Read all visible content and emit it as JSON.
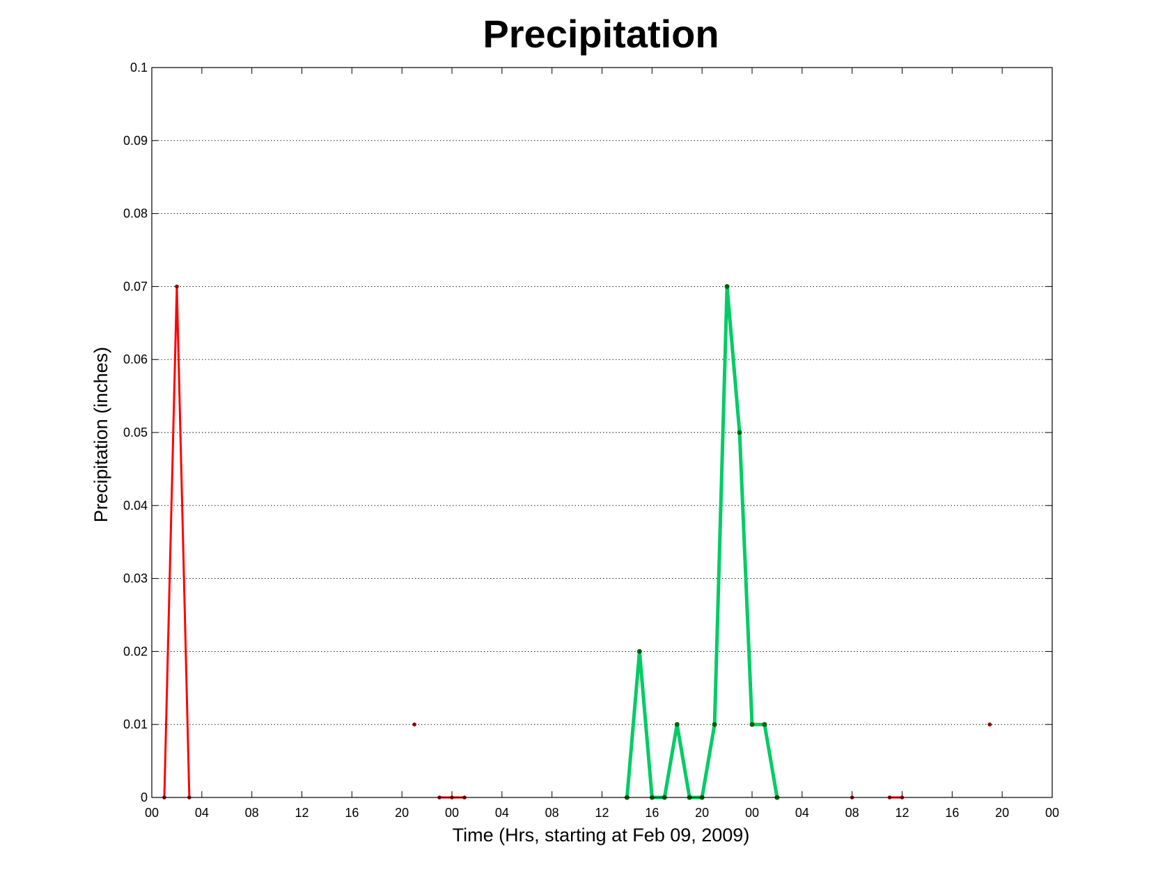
{
  "chart_data": {
    "type": "line",
    "title": "Precipitation",
    "xlabel": "Time (Hrs, starting at Feb 09, 2009)",
    "ylabel": "Precipitation (inches)",
    "x_unit": "hours",
    "xlim": [
      0,
      72
    ],
    "ylim": [
      0,
      0.1
    ],
    "x_tick_labels": [
      "00",
      "04",
      "08",
      "12",
      "16",
      "20",
      "00",
      "04",
      "08",
      "12",
      "16",
      "20",
      "00",
      "04",
      "08",
      "12",
      "16",
      "20",
      "00"
    ],
    "y_tick_labels": [
      "0",
      "0.01",
      "0.02",
      "0.03",
      "0.04",
      "0.05",
      "0.06",
      "0.07",
      "0.08",
      "0.09",
      "0.1"
    ],
    "y_ticks": [
      0,
      0.01,
      0.02,
      0.03,
      0.04,
      0.05,
      0.06,
      0.07,
      0.08,
      0.09,
      0.1
    ],
    "grid": "y-major dotted",
    "series": [
      {
        "color": "#ff0000",
        "marker_color": "#8b0000",
        "line_width": 3,
        "segments": [
          [
            [
              1,
              0
            ],
            [
              2,
              0.07
            ],
            [
              3,
              0
            ]
          ],
          [
            [
              21,
              0.01
            ]
          ],
          [
            [
              23,
              0
            ],
            [
              24,
              0
            ],
            [
              25,
              0
            ]
          ],
          [
            [
              56,
              0
            ]
          ],
          [
            [
              59,
              0
            ],
            [
              60,
              0
            ]
          ],
          [
            [
              67,
              0.01
            ]
          ]
        ]
      },
      {
        "color": "#00cc66",
        "marker_color": "#006400",
        "line_width": 5,
        "segments": [
          [
            [
              38,
              0
            ],
            [
              39,
              0.02
            ],
            [
              40,
              0
            ],
            [
              41,
              0
            ],
            [
              42,
              0.01
            ],
            [
              43,
              0
            ],
            [
              44,
              0
            ],
            [
              45,
              0.01
            ],
            [
              46,
              0.07
            ],
            [
              47,
              0.05
            ],
            [
              48,
              0.01
            ],
            [
              49,
              0.01
            ],
            [
              50,
              0
            ]
          ]
        ]
      }
    ]
  }
}
